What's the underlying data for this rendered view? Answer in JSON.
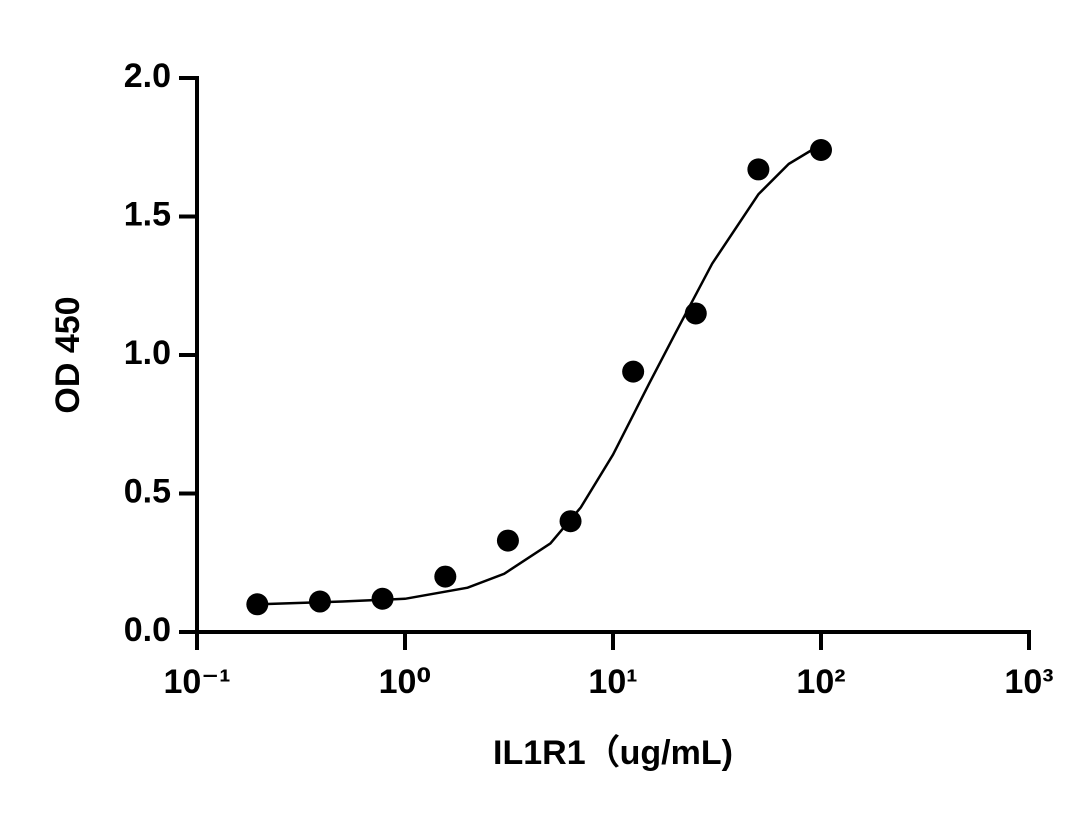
{
  "chart_data": {
    "type": "scatter",
    "x_label": "IL1R1（ug/mL)",
    "y_label": "OD 450",
    "x_scale": "log",
    "color": "#000000",
    "x": [
      0.195,
      0.39,
      0.78,
      1.5625,
      3.125,
      6.25,
      12.5,
      25,
      50,
      100
    ],
    "values": [
      0.1,
      0.11,
      0.12,
      0.2,
      0.33,
      0.4,
      0.94,
      1.15,
      1.67,
      1.74
    ],
    "curve": {
      "x": [
        0.2,
        0.5,
        1,
        2,
        3,
        5,
        7,
        10,
        15,
        20,
        30,
        50,
        70,
        100
      ],
      "values": [
        0.1,
        0.11,
        0.12,
        0.16,
        0.21,
        0.32,
        0.45,
        0.64,
        0.9,
        1.08,
        1.33,
        1.58,
        1.69,
        1.76
      ]
    },
    "xlim": [
      0.1,
      1000
    ],
    "xticks": [
      {
        "value": 0.1,
        "label": "10⁻¹"
      },
      {
        "value": 1,
        "label": "10⁰"
      },
      {
        "value": 10,
        "label": "10¹"
      },
      {
        "value": 100,
        "label": "10²"
      },
      {
        "value": 1000,
        "label": "10³"
      }
    ],
    "ylim": [
      0,
      2
    ],
    "yticks": [
      {
        "value": 0,
        "label": "0.0"
      },
      0.5,
      {
        "value": 1,
        "label": "1.0"
      },
      1.5,
      {
        "value": 2,
        "label": "2.0"
      }
    ]
  }
}
